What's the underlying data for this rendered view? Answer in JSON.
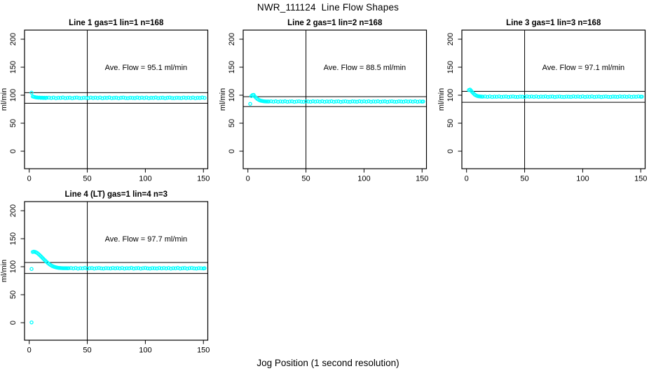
{
  "header": {
    "main_title": "NWR_111124  Line Flow Shapes"
  },
  "footer": {
    "x_axis_label": "Jog Position (1 second resolution)"
  },
  "colors": {
    "point": "#00FFFF",
    "axis": "#000000",
    "background": "#FFFFFF"
  },
  "chart_data": [
    {
      "type": "scatter",
      "title": "Line 1 gas=1 lin=1 n=168",
      "annotation": "Ave. Flow =  95.1  ml/min",
      "ave_flow_ml_min": 95.1,
      "ylabel": "ml/min",
      "x_ticks": [
        0,
        50,
        100,
        150
      ],
      "y_ticks": [
        0,
        50,
        100,
        150,
        200
      ],
      "vline_x": 50,
      "hlines": [
        104.6,
        85.6
      ],
      "points": [
        [
          2,
          104.5
        ],
        [
          3,
          97.8
        ],
        [
          4,
          97.1
        ],
        [
          5,
          96.6
        ],
        [
          6,
          96.1
        ],
        [
          7,
          95.9
        ],
        [
          8,
          95.6
        ],
        [
          9,
          95.8
        ],
        [
          10,
          95.3
        ],
        [
          11,
          95.7
        ],
        [
          12,
          95.1
        ],
        [
          13,
          95.5
        ],
        [
          14,
          95.0
        ],
        [
          15,
          95.4
        ],
        [
          17,
          95.7
        ],
        [
          19,
          94.9
        ],
        [
          21,
          95.8
        ],
        [
          23,
          94.6
        ],
        [
          25,
          95.4
        ],
        [
          27,
          95.1
        ],
        [
          29,
          95.9
        ],
        [
          31,
          94.7
        ],
        [
          33,
          95.3
        ],
        [
          35,
          95.6
        ],
        [
          37,
          94.6
        ],
        [
          39,
          95.4
        ],
        [
          41,
          95.8
        ],
        [
          43,
          95.0
        ],
        [
          45,
          94.7
        ],
        [
          47,
          95.5
        ],
        [
          49,
          95.2
        ],
        [
          51,
          94.8
        ],
        [
          53,
          95.8
        ],
        [
          55,
          95.0
        ],
        [
          57,
          95.7
        ],
        [
          59,
          94.9
        ],
        [
          61,
          95.8
        ],
        [
          63,
          94.6
        ],
        [
          65,
          95.4
        ],
        [
          67,
          95.1
        ],
        [
          69,
          95.9
        ],
        [
          71,
          94.7
        ],
        [
          73,
          95.3
        ],
        [
          75,
          95.6
        ],
        [
          77,
          94.6
        ],
        [
          79,
          95.4
        ],
        [
          81,
          95.8
        ],
        [
          83,
          95.0
        ],
        [
          85,
          94.7
        ],
        [
          87,
          95.5
        ],
        [
          89,
          95.2
        ],
        [
          91,
          94.8
        ],
        [
          93,
          95.8
        ],
        [
          95,
          95.0
        ],
        [
          97,
          95.7
        ],
        [
          99,
          94.9
        ],
        [
          101,
          95.8
        ],
        [
          103,
          94.6
        ],
        [
          105,
          95.4
        ],
        [
          107,
          95.1
        ],
        [
          109,
          95.9
        ],
        [
          111,
          94.7
        ],
        [
          113,
          95.3
        ],
        [
          115,
          95.6
        ],
        [
          117,
          94.6
        ],
        [
          119,
          95.4
        ],
        [
          121,
          95.8
        ],
        [
          123,
          95.0
        ],
        [
          125,
          94.7
        ],
        [
          127,
          95.5
        ],
        [
          129,
          95.2
        ],
        [
          131,
          94.8
        ],
        [
          133,
          95.8
        ],
        [
          135,
          95.0
        ],
        [
          137,
          95.7
        ],
        [
          139,
          94.9
        ],
        [
          141,
          95.8
        ],
        [
          143,
          94.6
        ],
        [
          145,
          95.4
        ],
        [
          147,
          95.1
        ],
        [
          149,
          95.9
        ],
        [
          151,
          95.2
        ]
      ]
    },
    {
      "type": "scatter",
      "title": "Line 2 gas=1 lin=2 n=168",
      "annotation": "Ave. Flow =  88.5  ml/min",
      "ave_flow_ml_min": 88.5,
      "ylabel": "ml/min",
      "x_ticks": [
        0,
        50,
        100,
        150
      ],
      "y_ticks": [
        0,
        50,
        100,
        150,
        200
      ],
      "vline_x": 50,
      "hlines": [
        97.4,
        79.7
      ],
      "points": [
        [
          2,
          84.5
        ],
        [
          3,
          98.5
        ],
        [
          4,
          100.3
        ],
        [
          5,
          100.6
        ],
        [
          6,
          97.6
        ],
        [
          7,
          95.4
        ],
        [
          8,
          93.6
        ],
        [
          9,
          92.2
        ],
        [
          10,
          91.1
        ],
        [
          11,
          90.3
        ],
        [
          12,
          89.8
        ],
        [
          13,
          89.4
        ],
        [
          14,
          89.1
        ],
        [
          15,
          88.9
        ],
        [
          16,
          88.8
        ],
        [
          17,
          88.8
        ],
        [
          18,
          88.7
        ],
        [
          20,
          89.1
        ],
        [
          22,
          88.5
        ],
        [
          24,
          89.2
        ],
        [
          26,
          88.3
        ],
        [
          28,
          88.9
        ],
        [
          30,
          88.6
        ],
        [
          32,
          89.2
        ],
        [
          34,
          88.3
        ],
        [
          36,
          88.8
        ],
        [
          38,
          89.0
        ],
        [
          40,
          88.2
        ],
        [
          42,
          88.8
        ],
        [
          44,
          89.1
        ],
        [
          46,
          88.5
        ],
        [
          48,
          88.3
        ],
        [
          50,
          89.0
        ],
        [
          52,
          88.7
        ],
        [
          54,
          88.4
        ],
        [
          56,
          89.2
        ],
        [
          58,
          88.6
        ],
        [
          60,
          89.1
        ],
        [
          62,
          88.5
        ],
        [
          64,
          89.2
        ],
        [
          66,
          88.3
        ],
        [
          68,
          88.9
        ],
        [
          70,
          88.6
        ],
        [
          72,
          89.2
        ],
        [
          74,
          88.3
        ],
        [
          76,
          88.8
        ],
        [
          78,
          89.0
        ],
        [
          80,
          88.2
        ],
        [
          82,
          88.8
        ],
        [
          84,
          89.1
        ],
        [
          86,
          88.5
        ],
        [
          88,
          88.3
        ],
        [
          90,
          89.0
        ],
        [
          92,
          88.7
        ],
        [
          94,
          88.4
        ],
        [
          96,
          89.2
        ],
        [
          98,
          88.6
        ],
        [
          100,
          89.1
        ],
        [
          102,
          88.5
        ],
        [
          104,
          89.2
        ],
        [
          106,
          88.3
        ],
        [
          108,
          88.9
        ],
        [
          110,
          88.6
        ],
        [
          112,
          89.2
        ],
        [
          114,
          88.3
        ],
        [
          116,
          88.8
        ],
        [
          118,
          89.0
        ],
        [
          120,
          88.2
        ],
        [
          122,
          88.8
        ],
        [
          124,
          89.1
        ],
        [
          126,
          88.5
        ],
        [
          128,
          88.3
        ],
        [
          130,
          89.0
        ],
        [
          132,
          88.7
        ],
        [
          134,
          88.4
        ],
        [
          136,
          89.2
        ],
        [
          138,
          88.6
        ],
        [
          140,
          89.1
        ],
        [
          142,
          88.5
        ],
        [
          144,
          89.2
        ],
        [
          146,
          88.3
        ],
        [
          148,
          88.9
        ],
        [
          150,
          88.6
        ],
        [
          151,
          88.8
        ]
      ]
    },
    {
      "type": "scatter",
      "title": "Line 3 gas=1 lin=3 n=168",
      "annotation": "Ave. Flow =  97.1  ml/min",
      "ave_flow_ml_min": 97.1,
      "ylabel": "ml/min",
      "x_ticks": [
        0,
        50,
        100,
        150
      ],
      "y_ticks": [
        0,
        50,
        100,
        150,
        200
      ],
      "vline_x": 50,
      "hlines": [
        106.8,
        87.4
      ],
      "points": [
        [
          2,
          109.2
        ],
        [
          3,
          110.0
        ],
        [
          4,
          107.9
        ],
        [
          5,
          105.3
        ],
        [
          6,
          103.0
        ],
        [
          7,
          101.1
        ],
        [
          8,
          99.7
        ],
        [
          9,
          98.8
        ],
        [
          10,
          98.2
        ],
        [
          11,
          97.9
        ],
        [
          12,
          97.7
        ],
        [
          13,
          97.5
        ],
        [
          14,
          97.4
        ],
        [
          16,
          97.7
        ],
        [
          18,
          97.1
        ],
        [
          20,
          97.8
        ],
        [
          22,
          96.9
        ],
        [
          24,
          97.5
        ],
        [
          26,
          97.2
        ],
        [
          28,
          97.8
        ],
        [
          30,
          96.9
        ],
        [
          32,
          97.4
        ],
        [
          34,
          97.6
        ],
        [
          36,
          96.8
        ],
        [
          38,
          97.4
        ],
        [
          40,
          97.7
        ],
        [
          42,
          97.1
        ],
        [
          44,
          96.9
        ],
        [
          46,
          97.5
        ],
        [
          48,
          97.3
        ],
        [
          50,
          97.0
        ],
        [
          52,
          97.8
        ],
        [
          54,
          97.2
        ],
        [
          56,
          97.7
        ],
        [
          58,
          97.1
        ],
        [
          60,
          97.8
        ],
        [
          62,
          96.9
        ],
        [
          64,
          97.5
        ],
        [
          66,
          97.2
        ],
        [
          68,
          97.8
        ],
        [
          70,
          96.9
        ],
        [
          72,
          97.4
        ],
        [
          74,
          97.6
        ],
        [
          76,
          96.8
        ],
        [
          78,
          97.4
        ],
        [
          80,
          97.7
        ],
        [
          82,
          97.1
        ],
        [
          84,
          96.9
        ],
        [
          86,
          97.5
        ],
        [
          88,
          97.3
        ],
        [
          90,
          97.0
        ],
        [
          92,
          97.8
        ],
        [
          94,
          97.2
        ],
        [
          96,
          97.7
        ],
        [
          98,
          97.1
        ],
        [
          100,
          97.8
        ],
        [
          102,
          96.9
        ],
        [
          104,
          97.5
        ],
        [
          106,
          97.2
        ],
        [
          108,
          97.8
        ],
        [
          110,
          96.9
        ],
        [
          112,
          97.4
        ],
        [
          114,
          97.6
        ],
        [
          116,
          96.8
        ],
        [
          118,
          97.4
        ],
        [
          120,
          97.7
        ],
        [
          122,
          97.1
        ],
        [
          124,
          96.9
        ],
        [
          126,
          97.5
        ],
        [
          128,
          97.3
        ],
        [
          130,
          97.0
        ],
        [
          132,
          97.8
        ],
        [
          134,
          97.2
        ],
        [
          136,
          97.7
        ],
        [
          138,
          97.1
        ],
        [
          140,
          97.8
        ],
        [
          142,
          96.9
        ],
        [
          144,
          97.5
        ],
        [
          146,
          97.2
        ],
        [
          148,
          97.8
        ],
        [
          150,
          97.3
        ],
        [
          151,
          97.4
        ]
      ]
    },
    {
      "type": "scatter",
      "title": "Line 4 (LT) gas=1 lin=4 n=3",
      "annotation": "Ave. Flow =  97.7  ml/min",
      "ave_flow_ml_min": 97.7,
      "ylabel": "ml/min",
      "x_ticks": [
        0,
        50,
        100,
        150
      ],
      "y_ticks": [
        0,
        50,
        100,
        150,
        200
      ],
      "vline_x": 50,
      "hlines": [
        107.5,
        87.9
      ],
      "points": [
        [
          2,
          0.5
        ],
        [
          2,
          96.0
        ],
        [
          3,
          126.3
        ],
        [
          4,
          126.8
        ],
        [
          5,
          126.4
        ],
        [
          6,
          125.6
        ],
        [
          7,
          124.3
        ],
        [
          8,
          122.6
        ],
        [
          9,
          120.7
        ],
        [
          10,
          118.7
        ],
        [
          11,
          116.6
        ],
        [
          12,
          114.5
        ],
        [
          13,
          112.4
        ],
        [
          14,
          110.4
        ],
        [
          15,
          108.5
        ],
        [
          16,
          106.7
        ],
        [
          17,
          105.0
        ],
        [
          18,
          103.5
        ],
        [
          19,
          102.2
        ],
        [
          20,
          101.1
        ],
        [
          21,
          100.2
        ],
        [
          22,
          99.5
        ],
        [
          23,
          98.9
        ],
        [
          24,
          98.4
        ],
        [
          25,
          98.0
        ],
        [
          26,
          97.8
        ],
        [
          27,
          97.6
        ],
        [
          28,
          97.5
        ],
        [
          29,
          97.4
        ],
        [
          30,
          97.3
        ],
        [
          31,
          97.3
        ],
        [
          32,
          97.4
        ],
        [
          33,
          97.2
        ],
        [
          34,
          97.3
        ],
        [
          36,
          97.7
        ],
        [
          38,
          96.9
        ],
        [
          40,
          97.8
        ],
        [
          42,
          96.6
        ],
        [
          44,
          97.4
        ],
        [
          46,
          97.1
        ],
        [
          48,
          97.9
        ],
        [
          50,
          96.7
        ],
        [
          52,
          97.3
        ],
        [
          54,
          97.6
        ],
        [
          56,
          96.6
        ],
        [
          58,
          97.4
        ],
        [
          60,
          97.8
        ],
        [
          62,
          97.0
        ],
        [
          64,
          96.7
        ],
        [
          66,
          97.5
        ],
        [
          68,
          97.2
        ],
        [
          70,
          96.8
        ],
        [
          72,
          97.8
        ],
        [
          74,
          97.0
        ],
        [
          76,
          97.7
        ],
        [
          78,
          96.9
        ],
        [
          80,
          97.8
        ],
        [
          82,
          96.6
        ],
        [
          84,
          97.4
        ],
        [
          86,
          97.1
        ],
        [
          88,
          97.9
        ],
        [
          90,
          96.7
        ],
        [
          92,
          97.3
        ],
        [
          94,
          97.6
        ],
        [
          96,
          96.6
        ],
        [
          98,
          97.4
        ],
        [
          100,
          97.8
        ],
        [
          102,
          97.0
        ],
        [
          104,
          96.7
        ],
        [
          106,
          97.5
        ],
        [
          108,
          97.2
        ],
        [
          110,
          96.8
        ],
        [
          112,
          97.8
        ],
        [
          114,
          97.0
        ],
        [
          116,
          97.7
        ],
        [
          118,
          96.9
        ],
        [
          120,
          97.8
        ],
        [
          122,
          96.6
        ],
        [
          124,
          97.4
        ],
        [
          126,
          97.1
        ],
        [
          128,
          97.9
        ],
        [
          130,
          96.7
        ],
        [
          132,
          97.3
        ],
        [
          134,
          97.6
        ],
        [
          136,
          96.6
        ],
        [
          138,
          97.4
        ],
        [
          140,
          97.8
        ],
        [
          142,
          97.0
        ],
        [
          144,
          96.7
        ],
        [
          146,
          97.5
        ],
        [
          148,
          97.2
        ],
        [
          150,
          96.8
        ],
        [
          151,
          97.3
        ]
      ]
    }
  ]
}
